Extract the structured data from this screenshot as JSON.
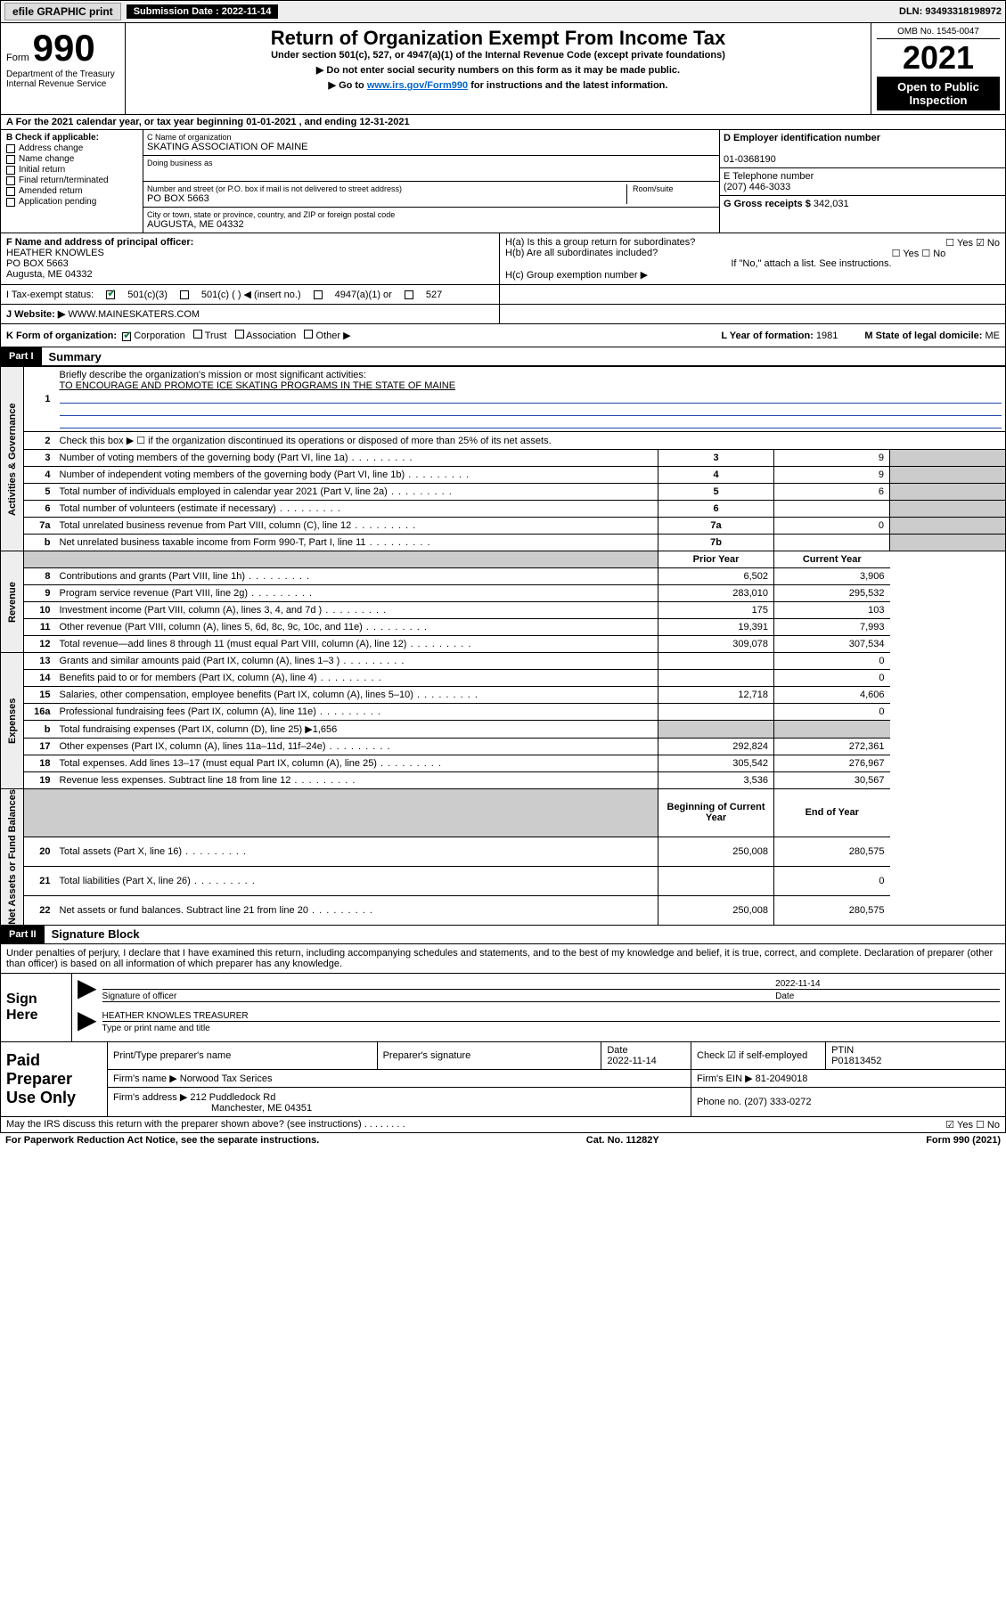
{
  "topbar": {
    "efile": "efile GRAPHIC print",
    "sub_label": "Submission Date : 2022-11-14",
    "dln": "DLN: 93493318198972"
  },
  "header": {
    "form_word": "Form",
    "form_num": "990",
    "title": "Return of Organization Exempt From Income Tax",
    "sub": "Under section 501(c), 527, or 4947(a)(1) of the Internal Revenue Code (except private foundations)",
    "instr1": "▶ Do not enter social security numbers on this form as it may be made public.",
    "instr2_pre": "▶ Go to ",
    "instr2_link": "www.irs.gov/Form990",
    "instr2_post": " for instructions and the latest information.",
    "dept1": "Department of the Treasury",
    "dept2": "Internal Revenue Service",
    "omb": "OMB No. 1545-0047",
    "year": "2021",
    "open_public": "Open to Public Inspection"
  },
  "blockA": {
    "text": "A For the 2021 calendar year, or tax year beginning 01-01-2021    , and ending 12-31-2021"
  },
  "colB": {
    "title": "B Check if applicable:",
    "items": [
      "Address change",
      "Name change",
      "Initial return",
      "Final return/terminated",
      "Amended return",
      "Application pending"
    ]
  },
  "colC": {
    "name_lbl": "C Name of organization",
    "name_val": "SKATING ASSOCIATION OF MAINE",
    "dba_lbl": "Doing business as",
    "addr_lbl": "Number and street (or P.O. box if mail is not delivered to street address)",
    "room_lbl": "Room/suite",
    "addr_val": "PO BOX 5663",
    "city_lbl": "City or town, state or province, country, and ZIP or foreign postal code",
    "city_val": "AUGUSTA, ME  04332"
  },
  "colD": {
    "ein_lbl": "D Employer identification number",
    "ein_val": "01-0368190",
    "phone_lbl": "E Telephone number",
    "phone_val": "(207) 446-3033",
    "gross_lbl": "G Gross receipts $",
    "gross_val": "342,031"
  },
  "blockF": {
    "f_lbl": "F Name and address of principal officer:",
    "f_name": "HEATHER KNOWLES",
    "f_addr1": "PO BOX 5663",
    "f_addr2": "Augusta, ME  04332",
    "i_lbl": "I    Tax-exempt status:",
    "i_501c3": "501(c)(3)",
    "i_501c": "501(c) (  ) ◀ (insert no.)",
    "i_4947": "4947(a)(1) or",
    "i_527": "527",
    "j_lbl": "J    Website: ▶",
    "j_val": "WWW.MAINESKATERS.COM"
  },
  "blockH": {
    "ha": "H(a)  Is this a group return for subordinates?",
    "ha_val": "☐ Yes  ☑ No",
    "hb": "H(b)  Are all subordinates included?",
    "hb_val": "☐ Yes  ☐ No",
    "hb_note": "If \"No,\" attach a list. See instructions.",
    "hc": "H(c)  Group exemption number ▶"
  },
  "blockK": {
    "k_lbl": "K Form of organization:",
    "k_corp": "Corporation",
    "k_trust": "Trust",
    "k_assoc": "Association",
    "k_other": "Other ▶",
    "l_lbl": "L Year of formation:",
    "l_val": "1981",
    "m_lbl": "M State of legal domicile:",
    "m_val": "ME"
  },
  "partI": {
    "hdr": "Part I",
    "title": "Summary",
    "side_ag": "Activities & Governance",
    "side_rev": "Revenue",
    "side_exp": "Expenses",
    "side_na": "Net Assets or Fund Balances",
    "l1_lbl": "Briefly describe the organization's mission or most significant activities:",
    "l1_val": "TO ENCOURAGE AND PROMOTE ICE SKATING PROGRAMS IN THE STATE OF MAINE",
    "l2": "Check this box ▶ ☐  if the organization discontinued its operations or disposed of more than 25% of its net assets.",
    "rows": [
      {
        "n": "3",
        "d": "Number of voting members of the governing body (Part VI, line 1a)",
        "m": "3",
        "v": "9"
      },
      {
        "n": "4",
        "d": "Number of independent voting members of the governing body (Part VI, line 1b)",
        "m": "4",
        "v": "9"
      },
      {
        "n": "5",
        "d": "Total number of individuals employed in calendar year 2021 (Part V, line 2a)",
        "m": "5",
        "v": "6"
      },
      {
        "n": "6",
        "d": "Total number of volunteers (estimate if necessary)",
        "m": "6",
        "v": ""
      },
      {
        "n": "7a",
        "d": "Total unrelated business revenue from Part VIII, column (C), line 12",
        "m": "7a",
        "v": "0"
      },
      {
        "n": "b",
        "d": "Net unrelated business taxable income from Form 990-T, Part I, line 11",
        "m": "7b",
        "v": ""
      }
    ],
    "colhdr_prior": "Prior Year",
    "colhdr_curr": "Current Year",
    "rev_rows": [
      {
        "n": "8",
        "d": "Contributions and grants (Part VIII, line 1h)",
        "p": "6,502",
        "c": "3,906"
      },
      {
        "n": "9",
        "d": "Program service revenue (Part VIII, line 2g)",
        "p": "283,010",
        "c": "295,532"
      },
      {
        "n": "10",
        "d": "Investment income (Part VIII, column (A), lines 3, 4, and 7d )",
        "p": "175",
        "c": "103"
      },
      {
        "n": "11",
        "d": "Other revenue (Part VIII, column (A), lines 5, 6d, 8c, 9c, 10c, and 11e)",
        "p": "19,391",
        "c": "7,993"
      },
      {
        "n": "12",
        "d": "Total revenue—add lines 8 through 11 (must equal Part VIII, column (A), line 12)",
        "p": "309,078",
        "c": "307,534"
      }
    ],
    "exp_rows": [
      {
        "n": "13",
        "d": "Grants and similar amounts paid (Part IX, column (A), lines 1–3 )",
        "p": "",
        "c": "0"
      },
      {
        "n": "14",
        "d": "Benefits paid to or for members (Part IX, column (A), line 4)",
        "p": "",
        "c": "0"
      },
      {
        "n": "15",
        "d": "Salaries, other compensation, employee benefits (Part IX, column (A), lines 5–10)",
        "p": "12,718",
        "c": "4,606"
      },
      {
        "n": "16a",
        "d": "Professional fundraising fees (Part IX, column (A), line 11e)",
        "p": "",
        "c": "0"
      },
      {
        "n": "b",
        "d": "Total fundraising expenses (Part IX, column (D), line 25) ▶1,656",
        "p": "shade",
        "c": "shade"
      },
      {
        "n": "17",
        "d": "Other expenses (Part IX, column (A), lines 11a–11d, 11f–24e)",
        "p": "292,824",
        "c": "272,361"
      },
      {
        "n": "18",
        "d": "Total expenses. Add lines 13–17 (must equal Part IX, column (A), line 25)",
        "p": "305,542",
        "c": "276,967"
      },
      {
        "n": "19",
        "d": "Revenue less expenses. Subtract line 18 from line 12",
        "p": "3,536",
        "c": "30,567"
      }
    ],
    "colhdr_beg": "Beginning of Current Year",
    "colhdr_end": "End of Year",
    "na_rows": [
      {
        "n": "20",
        "d": "Total assets (Part X, line 16)",
        "p": "250,008",
        "c": "280,575"
      },
      {
        "n": "21",
        "d": "Total liabilities (Part X, line 26)",
        "p": "",
        "c": "0"
      },
      {
        "n": "22",
        "d": "Net assets or fund balances. Subtract line 21 from line 20",
        "p": "250,008",
        "c": "280,575"
      }
    ]
  },
  "partII": {
    "hdr": "Part II",
    "title": "Signature Block",
    "intro": "Under penalties of perjury, I declare that I have examined this return, including accompanying schedules and statements, and to the best of my knowledge and belief, it is true, correct, and complete. Declaration of preparer (other than officer) is based on all information of which preparer has any knowledge.",
    "sign_here": "Sign Here",
    "sig_lbl": "Signature of officer",
    "date_lbl": "Date",
    "sig_date": "2022-11-14",
    "name_title": "HEATHER KNOWLES  TREASURER",
    "name_title_lbl": "Type or print name and title",
    "paid": "Paid Preparer Use Only",
    "prep_name_lbl": "Print/Type preparer's name",
    "prep_sig_lbl": "Preparer's signature",
    "prep_date_lbl": "Date",
    "prep_date": "2022-11-14",
    "prep_check_lbl": "Check ☑ if self-employed",
    "ptin_lbl": "PTIN",
    "ptin": "P01813452",
    "firm_name_lbl": "Firm's name    ▶",
    "firm_name": "Norwood Tax Serices",
    "firm_ein_lbl": "Firm's EIN ▶",
    "firm_ein": "81-2049018",
    "firm_addr_lbl": "Firm's address ▶",
    "firm_addr1": "212 Puddledock Rd",
    "firm_addr2": "Manchester, ME  04351",
    "firm_phone_lbl": "Phone no.",
    "firm_phone": "(207) 333-0272",
    "may_irs": "May the IRS discuss this return with the preparer shown above? (see instructions)",
    "may_irs_val": "☑ Yes  ☐ No"
  },
  "footer": {
    "pra": "For Paperwork Reduction Act Notice, see the separate instructions.",
    "cat": "Cat. No. 11282Y",
    "form": "Form 990 (2021)"
  },
  "colors": {
    "link": "#0066cc",
    "check": "#0a7a3a",
    "mission_rule": "#2049aa",
    "shade": "#cccccc",
    "topbar_bg": "#eeeeee"
  }
}
